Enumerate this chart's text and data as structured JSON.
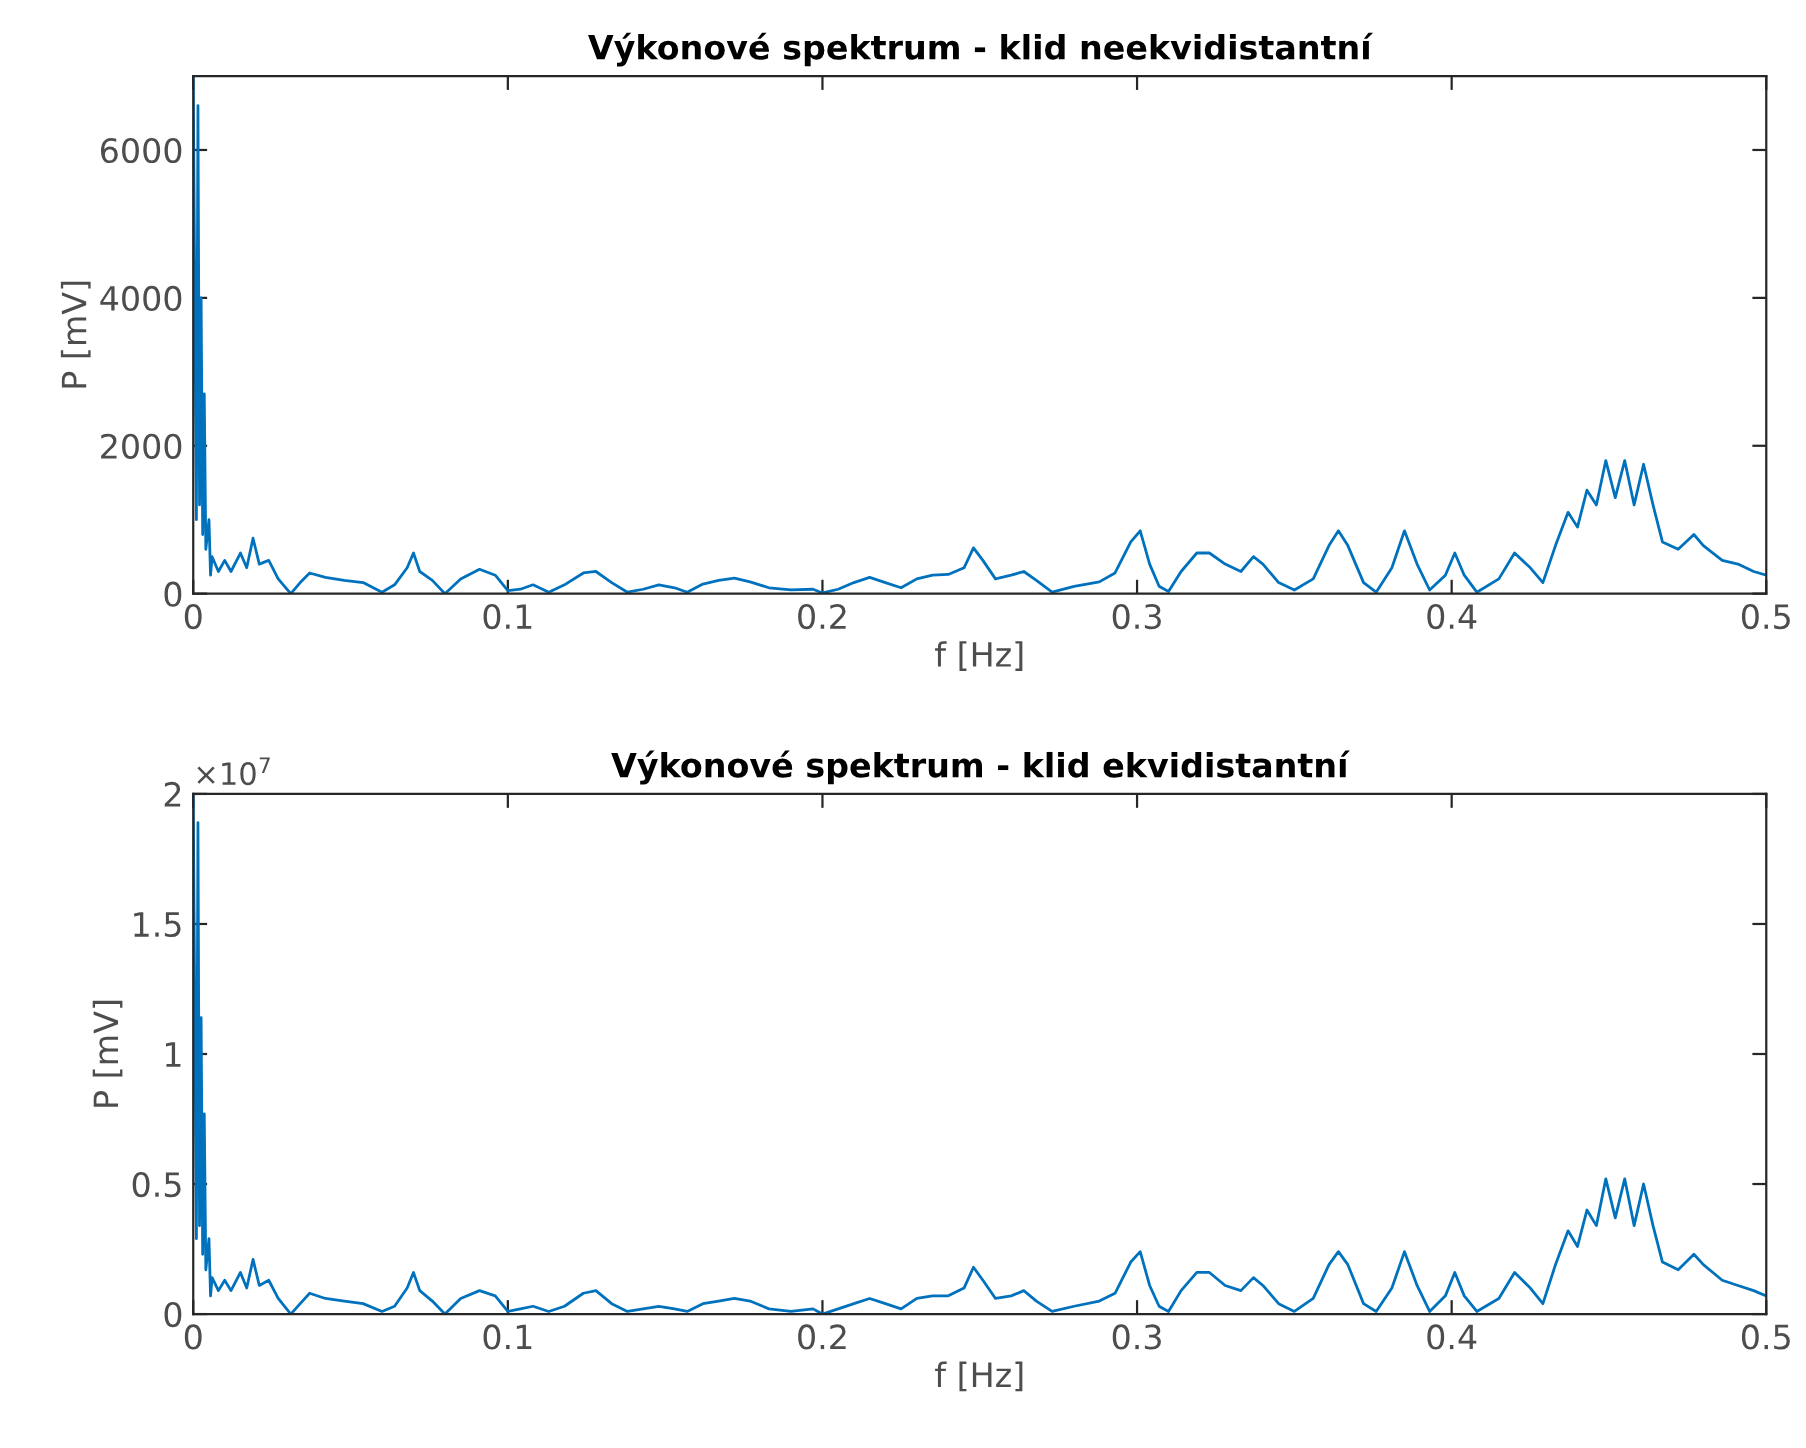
{
  "chart_data": [
    {
      "type": "line",
      "title": "Výkonové spektrum - klid neekvidistantní",
      "xlabel": "f [Hz]",
      "ylabel": "P [mV]",
      "xlim": [
        0,
        0.5
      ],
      "xticks": [
        0,
        0.1,
        0.2,
        0.3,
        0.4,
        0.5
      ],
      "ylim": [
        0,
        7000
      ],
      "yticks": [
        0,
        2000,
        4000,
        6000
      ],
      "grid": false,
      "legend": false,
      "x": [
        0,
        0.001,
        0.0015,
        0.002,
        0.0025,
        0.003,
        0.0035,
        0.004,
        0.005,
        0.0055,
        0.006,
        0.008,
        0.01,
        0.012,
        0.015,
        0.017,
        0.019,
        0.021,
        0.024,
        0.027,
        0.031,
        0.034,
        0.037,
        0.042,
        0.048,
        0.054,
        0.06,
        0.064,
        0.068,
        0.07,
        0.072,
        0.076,
        0.08,
        0.085,
        0.091,
        0.096,
        0.1,
        0.104,
        0.108,
        0.113,
        0.118,
        0.124,
        0.128,
        0.133,
        0.138,
        0.143,
        0.148,
        0.153,
        0.157,
        0.162,
        0.167,
        0.172,
        0.177,
        0.183,
        0.19,
        0.197,
        0.2,
        0.205,
        0.21,
        0.215,
        0.22,
        0.225,
        0.23,
        0.235,
        0.24,
        0.245,
        0.248,
        0.251,
        0.255,
        0.26,
        0.264,
        0.268,
        0.273,
        0.28,
        0.288,
        0.293,
        0.298,
        0.301,
        0.304,
        0.307,
        0.31,
        0.314,
        0.319,
        0.323,
        0.328,
        0.333,
        0.337,
        0.34,
        0.345,
        0.35,
        0.356,
        0.361,
        0.364,
        0.367,
        0.372,
        0.376,
        0.381,
        0.385,
        0.389,
        0.393,
        0.398,
        0.401,
        0.404,
        0.408,
        0.415,
        0.42,
        0.425,
        0.429,
        0.433,
        0.437,
        0.44,
        0.443,
        0.446,
        0.449,
        0.452,
        0.455,
        0.458,
        0.461,
        0.464,
        0.467,
        0.472,
        0.477,
        0.48,
        0.486,
        0.491,
        0.496,
        0.5
      ],
      "series": [
        {
          "color": "#0072bd",
          "values": [
            7000,
            1000,
            6600,
            1200,
            4000,
            800,
            2700,
            600,
            1000,
            250,
            500,
            300,
            450,
            300,
            550,
            350,
            750,
            400,
            450,
            200,
            0,
            150,
            280,
            220,
            180,
            150,
            20,
            120,
            350,
            550,
            300,
            180,
            0,
            200,
            330,
            250,
            40,
            60,
            120,
            20,
            120,
            280,
            300,
            150,
            20,
            60,
            120,
            80,
            20,
            130,
            180,
            210,
            160,
            80,
            50,
            60,
            10,
            60,
            150,
            220,
            150,
            80,
            200,
            250,
            260,
            350,
            620,
            450,
            200,
            250,
            300,
            180,
            20,
            100,
            160,
            280,
            700,
            850,
            400,
            100,
            30,
            300,
            550,
            550,
            400,
            300,
            500,
            400,
            150,
            50,
            200,
            650,
            850,
            650,
            150,
            20,
            350,
            850,
            400,
            50,
            250,
            550,
            250,
            20,
            200,
            550,
            350,
            150,
            650,
            1100,
            900,
            1400,
            1200,
            1800,
            1300,
            1800,
            1200,
            1750,
            1200,
            700,
            600,
            800,
            650,
            450,
            400,
            300,
            250
          ]
        }
      ]
    },
    {
      "type": "line",
      "title": "Výkonové spektrum - klid ekvidistantní",
      "xlabel": "f [Hz]",
      "ylabel": "P [mV]",
      "annotations": [
        "×10$^{7}$"
      ],
      "xlim": [
        0,
        0.5
      ],
      "xticks": [
        0,
        0.1,
        0.2,
        0.3,
        0.4,
        0.5
      ],
      "ylim": [
        0,
        2
      ],
      "yticks": [
        0,
        0.5,
        1,
        1.5,
        2
      ],
      "grid": false,
      "legend": false,
      "x": [
        0,
        0.001,
        0.0015,
        0.002,
        0.0025,
        0.003,
        0.0035,
        0.004,
        0.005,
        0.0055,
        0.006,
        0.008,
        0.01,
        0.012,
        0.015,
        0.017,
        0.019,
        0.021,
        0.024,
        0.027,
        0.031,
        0.034,
        0.037,
        0.042,
        0.048,
        0.054,
        0.06,
        0.064,
        0.068,
        0.07,
        0.072,
        0.076,
        0.08,
        0.085,
        0.091,
        0.096,
        0.1,
        0.104,
        0.108,
        0.113,
        0.118,
        0.124,
        0.128,
        0.133,
        0.138,
        0.143,
        0.148,
        0.153,
        0.157,
        0.162,
        0.167,
        0.172,
        0.177,
        0.183,
        0.19,
        0.197,
        0.2,
        0.205,
        0.21,
        0.215,
        0.22,
        0.225,
        0.23,
        0.235,
        0.24,
        0.245,
        0.248,
        0.251,
        0.255,
        0.26,
        0.264,
        0.268,
        0.273,
        0.28,
        0.288,
        0.293,
        0.298,
        0.301,
        0.304,
        0.307,
        0.31,
        0.314,
        0.319,
        0.323,
        0.328,
        0.333,
        0.337,
        0.34,
        0.345,
        0.35,
        0.356,
        0.361,
        0.364,
        0.367,
        0.372,
        0.376,
        0.381,
        0.385,
        0.389,
        0.393,
        0.398,
        0.401,
        0.404,
        0.408,
        0.415,
        0.42,
        0.425,
        0.429,
        0.433,
        0.437,
        0.44,
        0.443,
        0.446,
        0.449,
        0.452,
        0.455,
        0.458,
        0.461,
        0.464,
        0.467,
        0.472,
        0.477,
        0.48,
        0.486,
        0.491,
        0.496,
        0.5
      ],
      "series": [
        {
          "color": "#0072bd",
          "values": [
            2,
            0.29,
            1.89,
            0.34,
            1.14,
            0.23,
            0.77,
            0.17,
            0.29,
            0.07,
            0.14,
            0.09,
            0.13,
            0.09,
            0.16,
            0.1,
            0.21,
            0.11,
            0.13,
            0.06,
            0,
            0.04,
            0.08,
            0.06,
            0.05,
            0.04,
            0.01,
            0.03,
            0.1,
            0.16,
            0.09,
            0.05,
            0,
            0.06,
            0.09,
            0.07,
            0.01,
            0.02,
            0.03,
            0.01,
            0.03,
            0.08,
            0.09,
            0.04,
            0.01,
            0.02,
            0.03,
            0.02,
            0.01,
            0.04,
            0.05,
            0.06,
            0.05,
            0.02,
            0.01,
            0.02,
            0,
            0.02,
            0.04,
            0.06,
            0.04,
            0.02,
            0.06,
            0.07,
            0.07,
            0.1,
            0.18,
            0.13,
            0.06,
            0.07,
            0.09,
            0.05,
            0.01,
            0.03,
            0.05,
            0.08,
            0.2,
            0.24,
            0.11,
            0.03,
            0.01,
            0.09,
            0.16,
            0.16,
            0.11,
            0.09,
            0.14,
            0.11,
            0.04,
            0.01,
            0.06,
            0.19,
            0.24,
            0.19,
            0.04,
            0.01,
            0.1,
            0.24,
            0.11,
            0.01,
            0.07,
            0.16,
            0.07,
            0.01,
            0.06,
            0.16,
            0.1,
            0.04,
            0.19,
            0.32,
            0.26,
            0.4,
            0.34,
            0.52,
            0.37,
            0.52,
            0.34,
            0.5,
            0.34,
            0.2,
            0.17,
            0.23,
            0.19,
            0.13,
            0.11,
            0.09,
            0.07
          ]
        }
      ]
    }
  ]
}
